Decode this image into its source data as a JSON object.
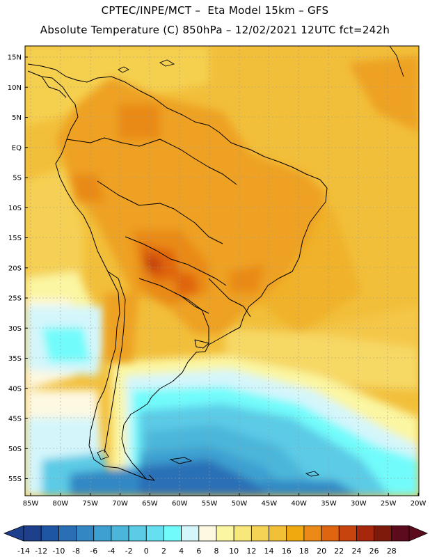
{
  "header": {
    "line1": "CPTEC/INPE/MCT –  Eta Model 15km – GFS",
    "line2": "Absolute Temperature (C) 850hPa – 12/02/2021 12UTC fct=242h"
  },
  "map": {
    "lat_labels": [
      "15N",
      "10N",
      "5N",
      "EQ",
      "5S",
      "10S",
      "15S",
      "20S",
      "25S",
      "30S",
      "35S",
      "40S",
      "45S",
      "50S",
      "55S"
    ],
    "lon_labels": [
      "85W",
      "80W",
      "75W",
      "70W",
      "65W",
      "60W",
      "55W",
      "50W",
      "45W",
      "40W",
      "35W",
      "30W",
      "25W",
      "20W"
    ]
  },
  "colorbar": {
    "colors": [
      "#1e3f8c",
      "#1f56a3",
      "#2a6fb6",
      "#3388c4",
      "#3ea0d0",
      "#4bb6da",
      "#5bcbe6",
      "#66e0f0",
      "#72fbfb",
      "#d4f6fb",
      "#fdf8e1",
      "#fbf6a2",
      "#f8e77b",
      "#f5d355",
      "#f2c036",
      "#f0aa10",
      "#eb8a17",
      "#df6511",
      "#c7440e",
      "#a6270b",
      "#7d1a0c",
      "#5c0b1d"
    ],
    "labels": [
      "-14",
      "-12",
      "-10",
      "-8",
      "-6",
      "-4",
      "-2",
      "0",
      "2",
      "4",
      "6",
      "8",
      "10",
      "12",
      "14",
      "16",
      "18",
      "20",
      "22",
      "24",
      "26",
      "28"
    ]
  }
}
